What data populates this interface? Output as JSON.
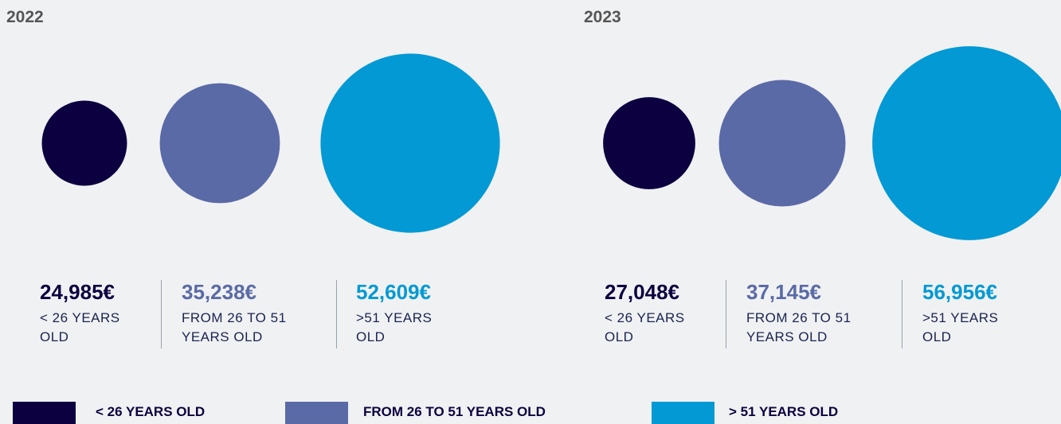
{
  "chart_data": [
    {
      "type": "bubble",
      "title": "2022",
      "categories": [
        "< 26 YEARS OLD",
        "FROM 26 TO 51 YEARS OLD",
        ">51 YEARS OLD"
      ],
      "values": [
        24985,
        35238,
        52609
      ],
      "value_labels": [
        "24,985€",
        "35,238€",
        "52,609€"
      ],
      "colors": [
        "#0c0040",
        "#5a6aa6",
        "#0299d4"
      ]
    },
    {
      "type": "bubble",
      "title": "2023",
      "categories": [
        "< 26 YEARS OLD",
        "FROM 26 TO 51 YEARS OLD",
        ">51 YEARS OLD"
      ],
      "values": [
        27048,
        37145,
        56956
      ],
      "value_labels": [
        "27,048€",
        "37,145€",
        "56,956€"
      ],
      "colors": [
        "#0c0040",
        "#5a6aa6",
        "#0299d4"
      ]
    }
  ],
  "legend": [
    {
      "label": "< 26 YEARS OLD",
      "color": "#0c0040"
    },
    {
      "label": "FROM 26 TO 51 YEARS OLD",
      "color": "#5a6aa6"
    },
    {
      "label": "> 51 YEARS OLD",
      "color": "#0299d4"
    }
  ]
}
